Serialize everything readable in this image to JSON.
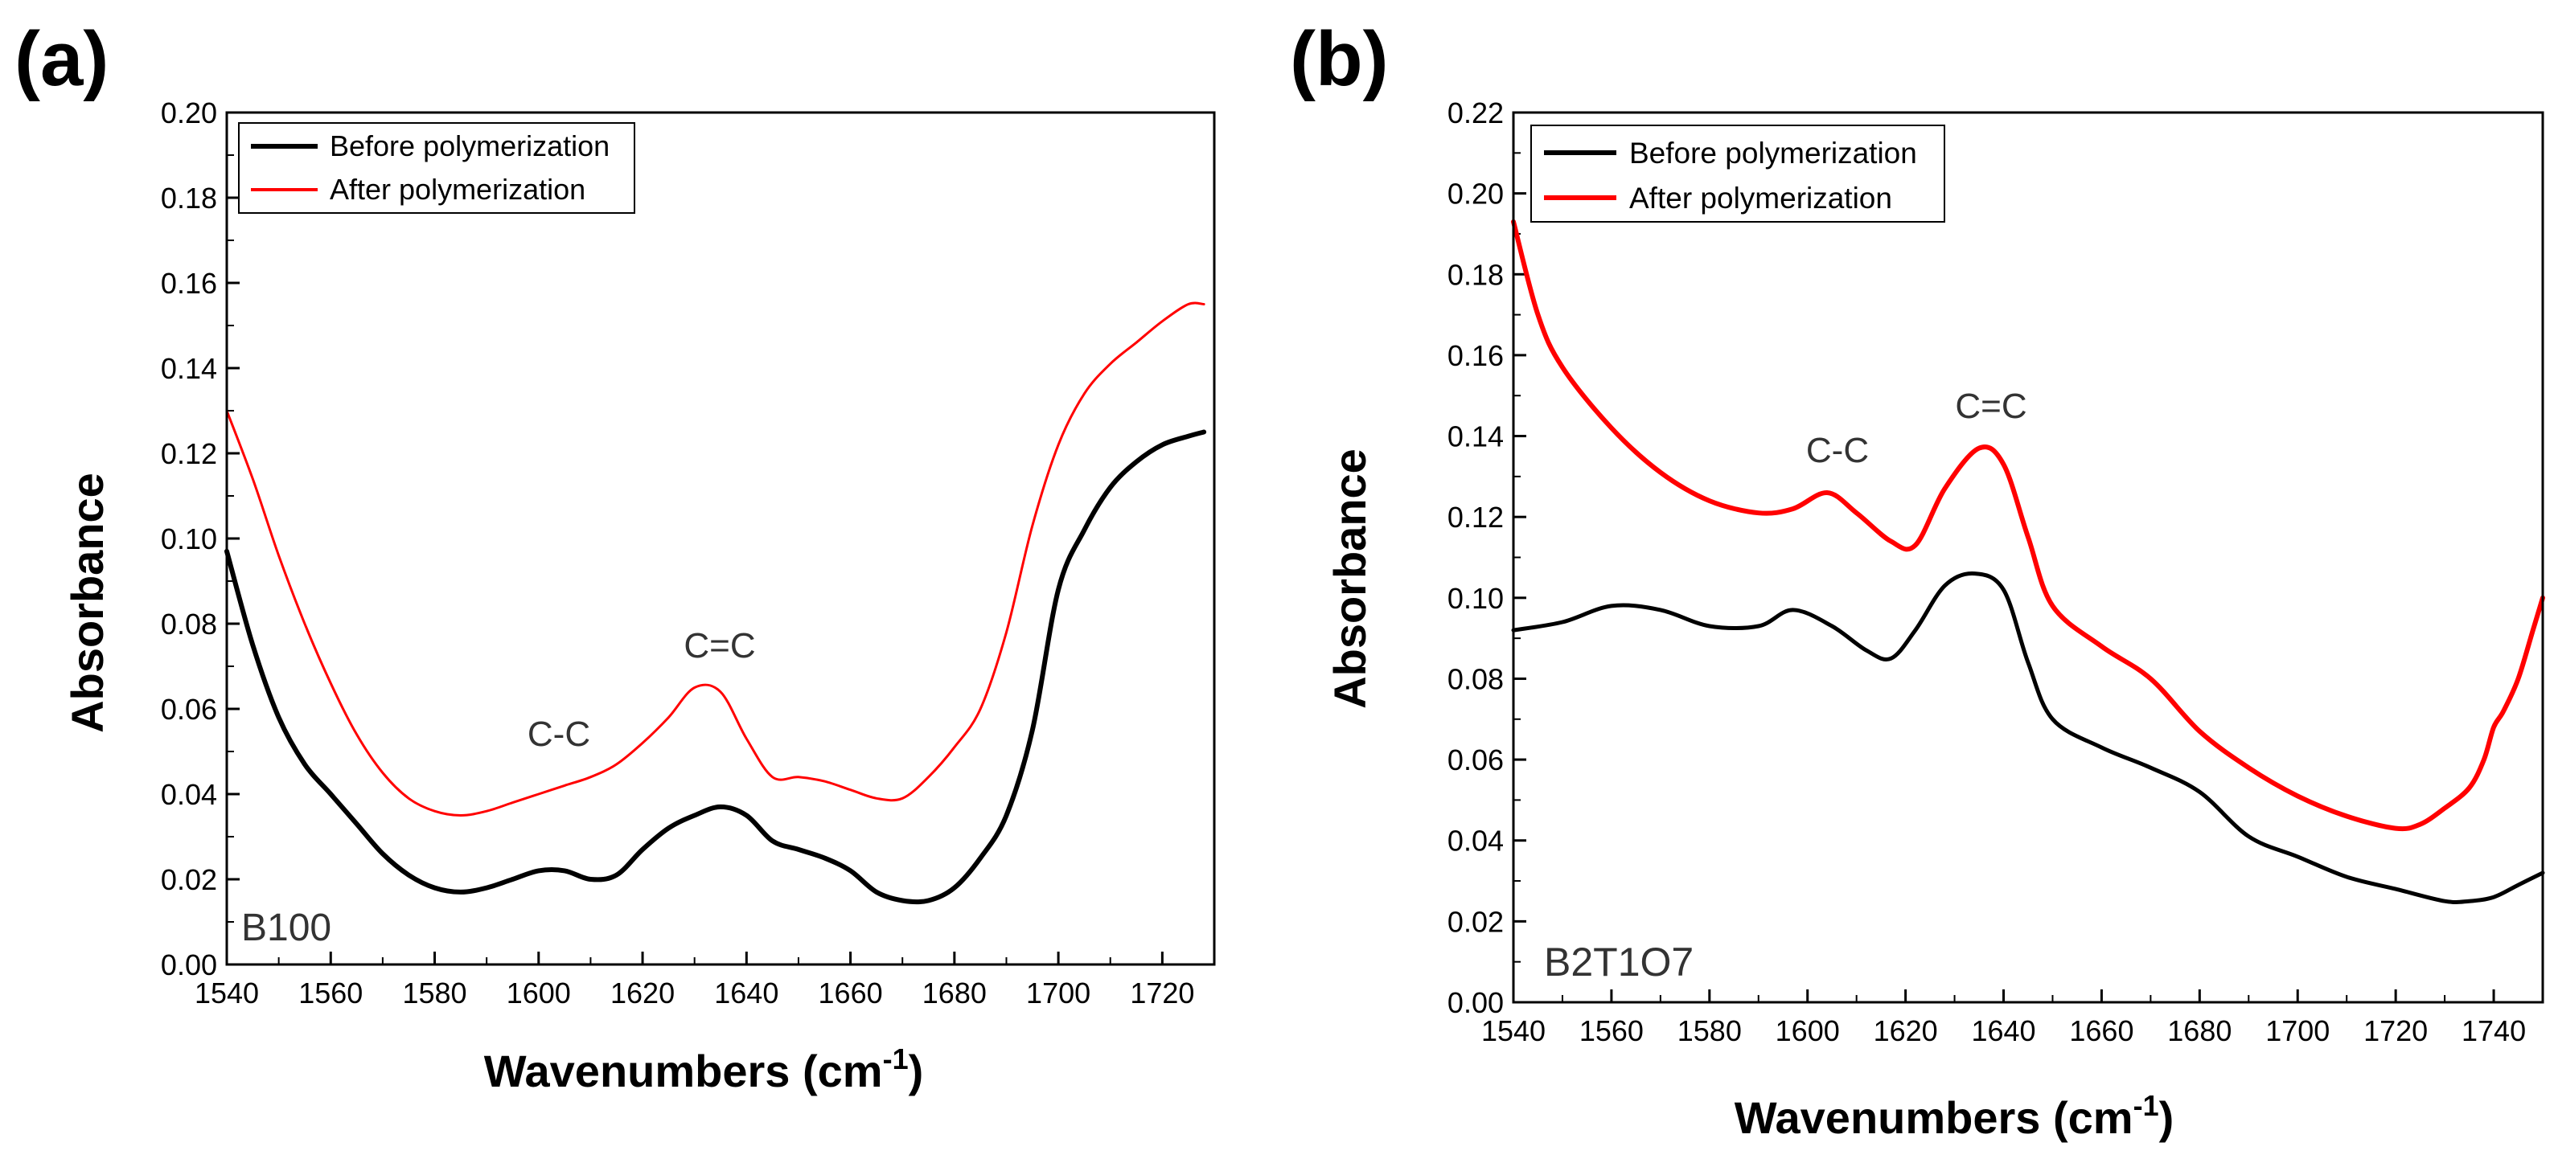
{
  "colors": {
    "before": "#000000",
    "after": "#ff0000",
    "axis": "#000000",
    "text": "#333333"
  },
  "chart_data": [
    {
      "type": "line",
      "panel_label": "(a)",
      "sample_label": "B100",
      "xlabel_main": "Wavenumbers (cm",
      "xlabel_sup": "-1",
      "xlabel_close": ")",
      "ylabel": "Absorbance",
      "xlim": [
        1540,
        1730
      ],
      "ylim": [
        0,
        0.2
      ],
      "xticks": [
        1540,
        1560,
        1580,
        1600,
        1620,
        1640,
        1660,
        1680,
        1700,
        1720
      ],
      "yticks": [
        0.0,
        0.02,
        0.04,
        0.06,
        0.08,
        0.1,
        0.12,
        0.14,
        0.16,
        0.18,
        0.2
      ],
      "ytick_labels": [
        "0.00",
        "0.02",
        "0.04",
        "0.06",
        "0.08",
        "0.10",
        "0.12",
        "0.14",
        "0.16",
        "0.18",
        "0.20"
      ],
      "legend_position": "top-left",
      "grid": false,
      "series": [
        {
          "name": "Before polymerization",
          "color": "#000000",
          "x": [
            1540,
            1545,
            1550,
            1555,
            1560,
            1565,
            1570,
            1575,
            1580,
            1585,
            1590,
            1595,
            1600,
            1605,
            1610,
            1615,
            1620,
            1625,
            1630,
            1635,
            1640,
            1645,
            1650,
            1655,
            1660,
            1665,
            1670,
            1675,
            1680,
            1685,
            1690,
            1695,
            1700,
            1705,
            1710,
            1715,
            1720,
            1725,
            1728
          ],
          "y": [
            0.097,
            0.075,
            0.058,
            0.047,
            0.04,
            0.033,
            0.026,
            0.021,
            0.018,
            0.017,
            0.018,
            0.02,
            0.022,
            0.022,
            0.02,
            0.021,
            0.027,
            0.032,
            0.035,
            0.037,
            0.035,
            0.029,
            0.027,
            0.025,
            0.022,
            0.017,
            0.015,
            0.015,
            0.018,
            0.025,
            0.035,
            0.055,
            0.088,
            0.102,
            0.112,
            0.118,
            0.122,
            0.124,
            0.125
          ]
        },
        {
          "name": "After polymerization",
          "color": "#ff0000",
          "x": [
            1540,
            1545,
            1550,
            1555,
            1560,
            1565,
            1570,
            1575,
            1580,
            1585,
            1590,
            1595,
            1600,
            1605,
            1610,
            1615,
            1620,
            1625,
            1630,
            1635,
            1640,
            1645,
            1650,
            1655,
            1660,
            1665,
            1670,
            1675,
            1680,
            1685,
            1690,
            1695,
            1700,
            1705,
            1710,
            1715,
            1720,
            1725,
            1728
          ],
          "y": [
            0.13,
            0.114,
            0.096,
            0.08,
            0.066,
            0.054,
            0.045,
            0.039,
            0.036,
            0.035,
            0.036,
            0.038,
            0.04,
            0.042,
            0.044,
            0.047,
            0.052,
            0.058,
            0.065,
            0.064,
            0.053,
            0.044,
            0.044,
            0.043,
            0.041,
            0.039,
            0.039,
            0.044,
            0.051,
            0.06,
            0.078,
            0.103,
            0.122,
            0.134,
            0.141,
            0.146,
            0.151,
            0.155,
            0.155
          ]
        }
      ],
      "annotations": [
        {
          "text": "C-C",
          "x": 1604,
          "y": 0.051
        },
        {
          "text": "C=C",
          "x": 1632,
          "y": 0.074
        }
      ]
    },
    {
      "type": "line",
      "panel_label": "(b)",
      "sample_label": "B2T1O7",
      "xlabel_main": "Wavenumbers (cm",
      "xlabel_sup": "-1",
      "xlabel_close": ")",
      "ylabel": "Absorbance",
      "xlim": [
        1540,
        1750
      ],
      "ylim": [
        0,
        0.22
      ],
      "xticks": [
        1540,
        1560,
        1580,
        1600,
        1620,
        1640,
        1660,
        1680,
        1700,
        1720,
        1740
      ],
      "yticks": [
        0.0,
        0.02,
        0.04,
        0.06,
        0.08,
        0.1,
        0.12,
        0.14,
        0.16,
        0.18,
        0.2,
        0.22
      ],
      "ytick_labels": [
        "0.00",
        "0.02",
        "0.04",
        "0.06",
        "0.08",
        "0.10",
        "0.12",
        "0.14",
        "0.16",
        "0.18",
        "0.20",
        "0.22"
      ],
      "legend_position": "top-left",
      "grid": false,
      "series": [
        {
          "name": "Before polymerization",
          "color": "#000000",
          "x": [
            1540,
            1550,
            1560,
            1570,
            1580,
            1590,
            1597,
            1605,
            1612,
            1617,
            1622,
            1628,
            1634,
            1640,
            1645,
            1650,
            1660,
            1670,
            1680,
            1690,
            1700,
            1710,
            1720,
            1730,
            1735,
            1740,
            1745,
            1750
          ],
          "y": [
            0.092,
            0.094,
            0.098,
            0.097,
            0.093,
            0.093,
            0.097,
            0.093,
            0.087,
            0.085,
            0.092,
            0.103,
            0.106,
            0.102,
            0.084,
            0.07,
            0.063,
            0.058,
            0.052,
            0.041,
            0.036,
            0.031,
            0.028,
            0.025,
            0.025,
            0.026,
            0.029,
            0.032
          ]
        },
        {
          "name": "After polymerization",
          "color": "#ff0000",
          "x": [
            1540,
            1545,
            1550,
            1560,
            1570,
            1580,
            1590,
            1597,
            1604,
            1610,
            1617,
            1622,
            1628,
            1635,
            1640,
            1645,
            1650,
            1660,
            1670,
            1680,
            1690,
            1700,
            1710,
            1720,
            1725,
            1730,
            1735,
            1738,
            1740,
            1742,
            1745,
            1748,
            1750
          ],
          "y": [
            0.193,
            0.17,
            0.157,
            0.142,
            0.131,
            0.124,
            0.121,
            0.122,
            0.126,
            0.121,
            0.114,
            0.113,
            0.127,
            0.137,
            0.133,
            0.115,
            0.098,
            0.088,
            0.08,
            0.067,
            0.058,
            0.051,
            0.046,
            0.043,
            0.044,
            0.048,
            0.053,
            0.06,
            0.068,
            0.072,
            0.08,
            0.092,
            0.1
          ]
        }
      ],
      "annotations": [
        {
          "text": "C-C",
          "x": 1604,
          "y": 0.137
        },
        {
          "text": "C=C",
          "x": 1635,
          "y": 0.148
        }
      ]
    }
  ]
}
